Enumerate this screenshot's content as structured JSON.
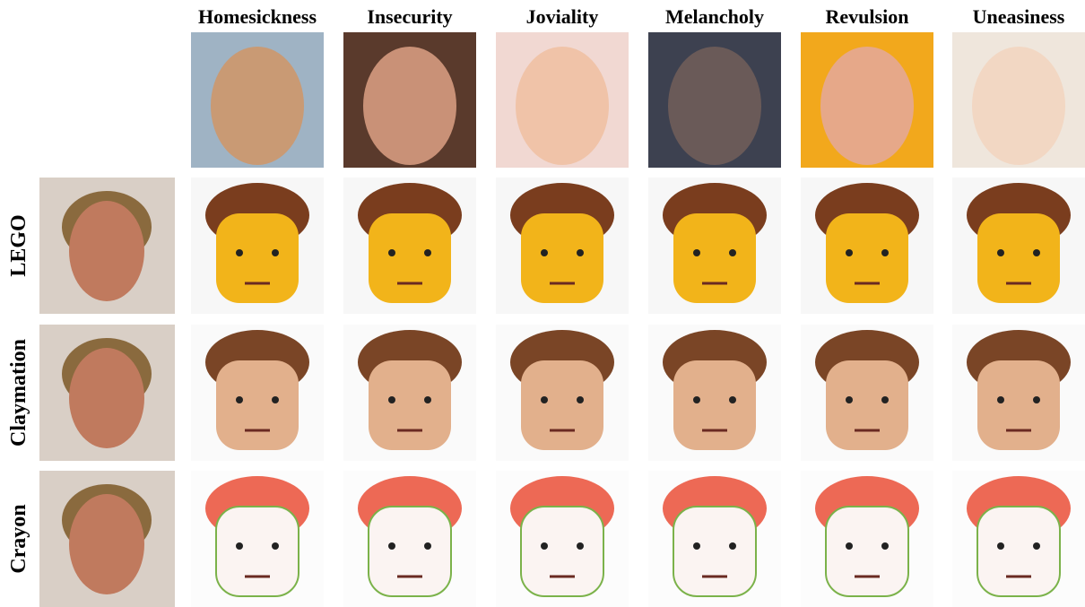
{
  "columns": [
    "Homesickness",
    "Insecurity",
    "Joviality",
    "Melancholy",
    "Revulsion",
    "Uneasiness"
  ],
  "rows": [
    "LEGO",
    "Claymation",
    "Crayon"
  ]
}
